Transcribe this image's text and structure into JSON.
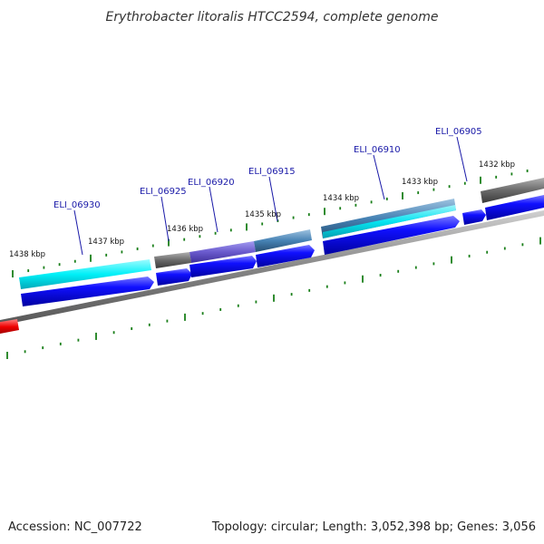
{
  "title": "Erythrobacter litoralis HTCC2594, complete genome",
  "footer": {
    "accession": "Accession: NC_007722",
    "summary": "Topology: circular; Length: 3,052,398 bp; Genes: 3,056"
  },
  "ticks": [
    "1438 kbp",
    "1437 kbp",
    "1436 kbp",
    "1435 kbp",
    "1434 kbp",
    "1433 kbp",
    "1432 kbp"
  ],
  "genes": [
    {
      "id": "ELI_06930",
      "label": "ELI_06930"
    },
    {
      "id": "ELI_06925",
      "label": "ELI_06925"
    },
    {
      "id": "ELI_06920",
      "label": "ELI_06920"
    },
    {
      "id": "ELI_06915",
      "label": "ELI_06915"
    },
    {
      "id": "ELI_06910",
      "label": "ELI_06910"
    },
    {
      "id": "ELI_06905",
      "label": "ELI_06905"
    }
  ],
  "colors": {
    "cds": "#0000e6",
    "mrna_cyan": "#00e5ee",
    "mrna_gray": "#6e6e6e",
    "mrna_purple": "#6a5acd",
    "mrna_steel": "#4682b4",
    "backbone": "#808080",
    "ticks": "#1a7f1a",
    "other_strand": "#e00000",
    "label": "#1a1aa8"
  }
}
